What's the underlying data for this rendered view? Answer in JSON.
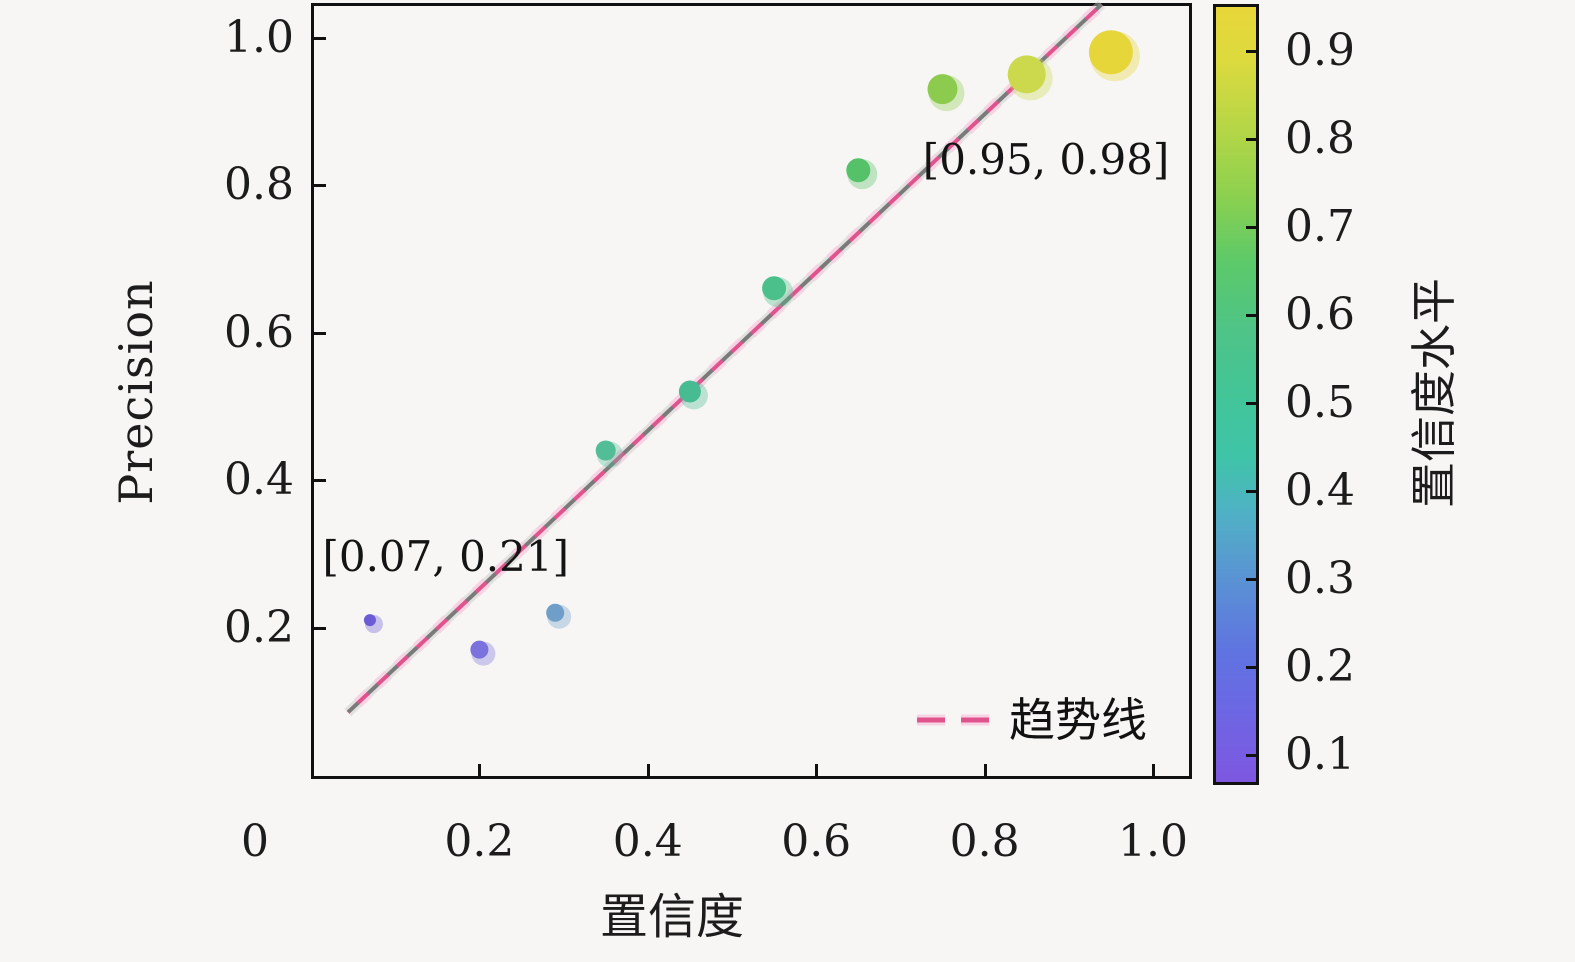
{
  "chart_data": {
    "type": "scatter",
    "xlabel": "置信度",
    "ylabel": "Precision",
    "xlim": [
      0,
      1.047
    ],
    "ylim": [
      0,
      1.047
    ],
    "xticks": {
      "values": [
        0,
        0.2,
        0.4,
        0.6,
        0.8,
        1.0
      ],
      "labels": [
        "0",
        "0.2",
        "0.4",
        "0.6",
        "0.8",
        "1.0"
      ]
    },
    "yticks": {
      "values": [
        0.2,
        0.4,
        0.6,
        0.8,
        1.0
      ],
      "labels": [
        "0.2",
        "0.4",
        "0.6",
        "0.8",
        "1.0"
      ]
    },
    "points": [
      {
        "confidence": 0.07,
        "precision": 0.21,
        "radius": 6,
        "color": "#6b5cd6"
      },
      {
        "confidence": 0.2,
        "precision": 0.17,
        "radius": 9,
        "color": "#7b72dd"
      },
      {
        "confidence": 0.29,
        "precision": 0.22,
        "radius": 9,
        "color": "#6f9fc8"
      },
      {
        "confidence": 0.35,
        "precision": 0.44,
        "radius": 10,
        "color": "#52bd97"
      },
      {
        "confidence": 0.45,
        "precision": 0.52,
        "radius": 11,
        "color": "#47bb92"
      },
      {
        "confidence": 0.55,
        "precision": 0.66,
        "radius": 12,
        "color": "#4cc08b"
      },
      {
        "confidence": 0.65,
        "precision": 0.82,
        "radius": 12,
        "color": "#55c168"
      },
      {
        "confidence": 0.75,
        "precision": 0.93,
        "radius": 15,
        "color": "#8ccb4e"
      },
      {
        "confidence": 0.85,
        "precision": 0.95,
        "radius": 19,
        "color": "#ccd94c"
      },
      {
        "confidence": 0.95,
        "precision": 0.98,
        "radius": 22,
        "color": "#e6d63a"
      }
    ],
    "trendline": {
      "label": "趋势线",
      "color": "#e0548e",
      "halo_color": "#f6b9d6",
      "gray_color": "#7a7a7a",
      "gray_halo_color": "#c9c9c9",
      "x1": 0.044,
      "y1": 0.085,
      "x2": 0.939,
      "y2": 1.045
    },
    "annotations": [
      {
        "text": "[0.07, 0.21]",
        "x": 0.16,
        "y": 0.296
      },
      {
        "text": "[0.95, 0.98]",
        "x": 0.873,
        "y": 0.834
      }
    ],
    "colorbar": {
      "label": "置信度水平",
      "vmin": 0.07,
      "vmax": 0.95,
      "tick_values": [
        0.1,
        0.2,
        0.3,
        0.4,
        0.5,
        0.6,
        0.7,
        0.8,
        0.9
      ],
      "tick_labels": [
        "0.1",
        "0.2",
        "0.3",
        "0.4",
        "0.5",
        "0.6",
        "0.7",
        "0.8",
        "0.9"
      ],
      "gradient_stops": [
        {
          "pct": 0,
          "color": "#7e57e0"
        },
        {
          "pct": 10,
          "color": "#6b68e4"
        },
        {
          "pct": 17,
          "color": "#5f74e0"
        },
        {
          "pct": 26,
          "color": "#5a92d4"
        },
        {
          "pct": 35,
          "color": "#4fb2c4"
        },
        {
          "pct": 42,
          "color": "#3fc4a8"
        },
        {
          "pct": 49,
          "color": "#42c59a"
        },
        {
          "pct": 58,
          "color": "#4ec488"
        },
        {
          "pct": 67,
          "color": "#5cc969"
        },
        {
          "pct": 76,
          "color": "#8ed14e"
        },
        {
          "pct": 84,
          "color": "#b4d647"
        },
        {
          "pct": 93,
          "color": "#dcda3e"
        },
        {
          "pct": 100,
          "color": "#e8d63a"
        }
      ]
    },
    "legend": {
      "position": "lower right",
      "entries": [
        {
          "label": "趋势线",
          "style": "dashed",
          "color": "#e0548e"
        }
      ]
    }
  }
}
